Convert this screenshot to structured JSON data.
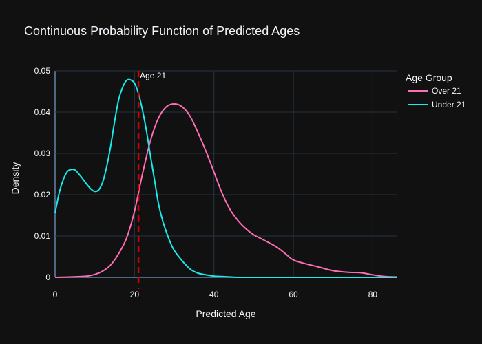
{
  "chart_data": {
    "type": "line",
    "title": "Continuous Probability Function of Predicted Ages",
    "xlabel": "Predicted Age",
    "ylabel": "Density",
    "xlim": [
      0,
      86
    ],
    "ylim": [
      0,
      0.05
    ],
    "xticks": [
      0,
      20,
      40,
      60,
      80
    ],
    "yticks": [
      0,
      0.01,
      0.02,
      0.03,
      0.04,
      0.05
    ],
    "ytick_labels": [
      "0",
      "0.01",
      "0.02",
      "0.03",
      "0.04",
      "0.05"
    ],
    "grid": true,
    "legend": {
      "title": "Age Group",
      "position": "top-right"
    },
    "series": [
      {
        "name": "Over 21",
        "color": "#ff6eb4",
        "x": [
          0,
          4,
          8,
          10,
          12,
          14,
          16,
          18,
          20,
          22,
          24,
          26,
          28,
          30,
          32,
          34,
          36,
          38,
          40,
          42,
          44,
          46,
          48,
          50,
          52,
          54,
          56,
          58,
          60,
          63,
          66,
          70,
          74,
          77,
          80,
          83,
          86
        ],
        "y": [
          0,
          0.0001,
          0.0003,
          0.0007,
          0.0015,
          0.003,
          0.0057,
          0.0095,
          0.016,
          0.025,
          0.033,
          0.0385,
          0.0413,
          0.042,
          0.0413,
          0.039,
          0.035,
          0.0305,
          0.0255,
          0.0205,
          0.0165,
          0.0138,
          0.0118,
          0.0103,
          0.0093,
          0.0083,
          0.0072,
          0.0057,
          0.0042,
          0.0033,
          0.0026,
          0.0016,
          0.0012,
          0.0011,
          0.0006,
          0.0002,
          0.0001
        ]
      },
      {
        "name": "Under 21",
        "color": "#19ecec",
        "x": [
          0,
          1,
          2,
          3,
          4,
          5,
          6,
          7,
          8,
          9,
          10,
          11,
          12,
          13,
          14,
          15,
          16,
          17,
          18,
          19,
          20,
          21,
          22,
          23,
          24,
          25,
          26,
          27,
          28,
          29,
          30,
          32,
          34,
          36,
          38,
          40,
          42,
          44,
          46,
          50,
          60,
          70,
          86
        ],
        "y": [
          0.0155,
          0.0203,
          0.0235,
          0.0255,
          0.0261,
          0.026,
          0.025,
          0.0238,
          0.0225,
          0.0214,
          0.0208,
          0.0212,
          0.0231,
          0.0268,
          0.0318,
          0.0378,
          0.043,
          0.046,
          0.0477,
          0.0478,
          0.047,
          0.0445,
          0.0405,
          0.0355,
          0.0295,
          0.0238,
          0.018,
          0.014,
          0.011,
          0.0085,
          0.0065,
          0.004,
          0.002,
          0.001,
          0.0006,
          0.0003,
          0.0002,
          0.0001,
          0,
          0,
          0,
          0,
          0
        ]
      }
    ],
    "annotations": [
      {
        "text": "Age 21",
        "x": 21,
        "line_style": "dashed",
        "color": "#d40000"
      }
    ]
  }
}
